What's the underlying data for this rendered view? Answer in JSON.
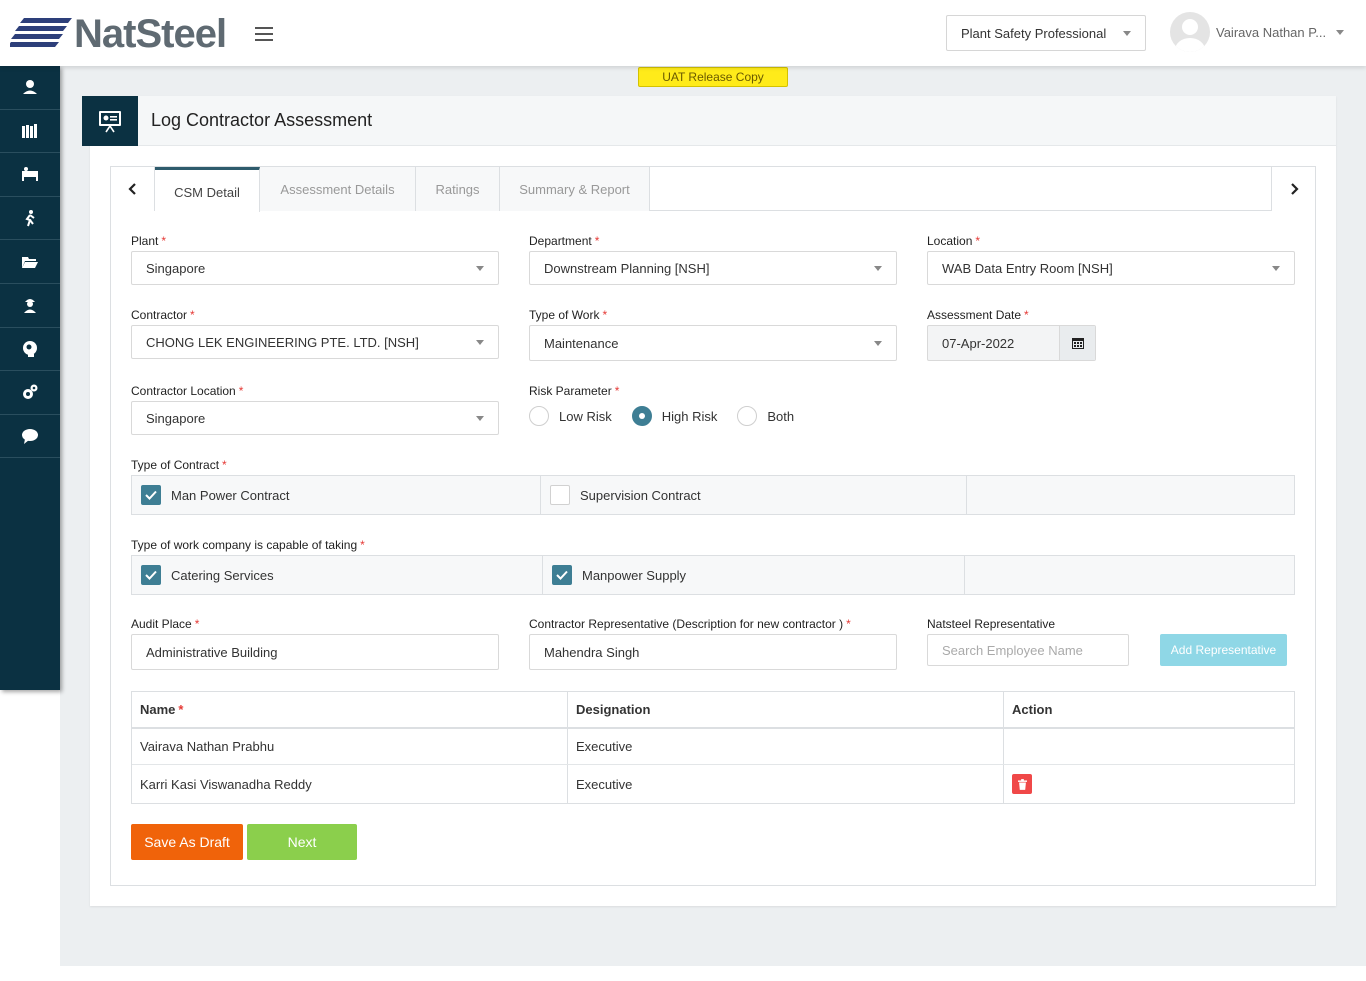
{
  "header": {
    "brand": "NatSteel",
    "role": "Plant Safety Professional",
    "user_name": "Vairava Nathan P..."
  },
  "uat_badge": "UAT Release Copy",
  "sidebar": {
    "items": [
      {
        "icon": "user-shield-icon"
      },
      {
        "icon": "library-icon"
      },
      {
        "icon": "bed-icon"
      },
      {
        "icon": "running-person-icon"
      },
      {
        "icon": "folder-open-icon"
      },
      {
        "icon": "worker-icon"
      },
      {
        "icon": "head-gear-icon"
      },
      {
        "icon": "gears-icon"
      },
      {
        "icon": "chat-icon"
      }
    ]
  },
  "page": {
    "title": "Log Contractor Assessment"
  },
  "tabs": [
    {
      "label": "CSM Detail",
      "active": true
    },
    {
      "label": "Assessment Details",
      "active": false
    },
    {
      "label": "Ratings",
      "active": false
    },
    {
      "label": "Summary & Report",
      "active": false
    }
  ],
  "form": {
    "plant": {
      "label": "Plant",
      "value": "Singapore"
    },
    "department": {
      "label": "Department",
      "value": "Downstream Planning [NSH]"
    },
    "location": {
      "label": "Location",
      "value": "WAB Data Entry Room [NSH]"
    },
    "contractor": {
      "label": "Contractor",
      "value": "CHONG LEK ENGINEERING PTE. LTD. [NSH]"
    },
    "type_of_work": {
      "label": "Type of Work",
      "value": "Maintenance"
    },
    "assessment_date": {
      "label": "Assessment Date",
      "value": "07-Apr-2022"
    },
    "contractor_location": {
      "label": "Contractor Location",
      "value": "Singapore"
    },
    "risk_parameter": {
      "label": "Risk Parameter",
      "options": [
        {
          "label": "Low Risk",
          "selected": false
        },
        {
          "label": "High Risk",
          "selected": true
        },
        {
          "label": "Both",
          "selected": false
        }
      ]
    },
    "type_of_contract": {
      "label": "Type of Contract",
      "options": [
        {
          "label": "Man Power Contract",
          "checked": true
        },
        {
          "label": "Supervision Contract",
          "checked": false
        }
      ]
    },
    "work_capability": {
      "label": "Type of work company is capable of taking",
      "options": [
        {
          "label": "Catering Services",
          "checked": true
        },
        {
          "label": "Manpower Supply",
          "checked": true
        }
      ]
    },
    "audit_place": {
      "label": "Audit Place",
      "value": "Administrative Building"
    },
    "contractor_rep": {
      "label": "Contractor Representative (Description for new contractor )",
      "value": "Mahendra Singh"
    },
    "natsteel_rep": {
      "label": "Natsteel Representative",
      "placeholder": "Search Employee Name"
    },
    "add_rep_label": "Add Representative"
  },
  "rep_table": {
    "headers": {
      "name": "Name",
      "designation": "Designation",
      "action": "Action"
    },
    "rows": [
      {
        "name": "Vairava Nathan Prabhu",
        "designation": "Executive",
        "deletable": false
      },
      {
        "name": "Karri Kasi Viswanadha Reddy",
        "designation": "Executive",
        "deletable": true
      }
    ]
  },
  "buttons": {
    "save_draft": "Save As Draft",
    "next": "Next"
  },
  "colors": {
    "sidebar": "#0b3142",
    "accent": "#3e7e94",
    "draft": "#f0630a",
    "next": "#8bcf4c",
    "add_rep": "#8fd7e6",
    "delete": "#f04848",
    "uat": "#ffeb1a"
  }
}
